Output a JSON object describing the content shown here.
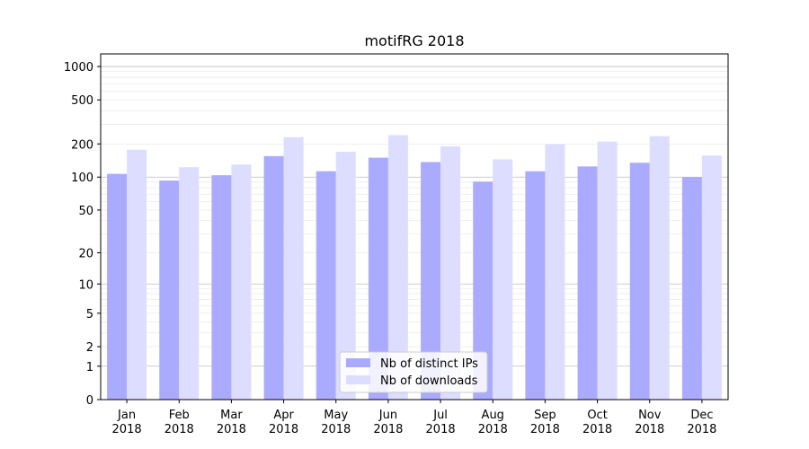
{
  "chart_data": {
    "type": "bar",
    "title": "motifRG 2018",
    "xlabel": "",
    "ylabel": "",
    "yscale": "log1p",
    "ylim": [
      0,
      1300
    ],
    "yticks": [
      0,
      1,
      2,
      5,
      10,
      20,
      50,
      100,
      200,
      500,
      1000
    ],
    "categories": [
      "Jan\n2018",
      "Feb\n2018",
      "Mar\n2018",
      "Apr\n2018",
      "May\n2018",
      "Jun\n2018",
      "Jul\n2018",
      "Aug\n2018",
      "Sep\n2018",
      "Oct\n2018",
      "Nov\n2018",
      "Dec\n2018"
    ],
    "series": [
      {
        "name": "Nb of distinct IPs",
        "color": "#aaaaff",
        "values": [
          107,
          93,
          104,
          155,
          113,
          150,
          137,
          91,
          113,
          125,
          135,
          100
        ]
      },
      {
        "name": "Nb of downloads",
        "color": "#ddddff",
        "values": [
          177,
          123,
          130,
          230,
          170,
          240,
          190,
          145,
          198,
          210,
          235,
          157
        ]
      }
    ],
    "grid": true,
    "legend": "lower-center"
  }
}
